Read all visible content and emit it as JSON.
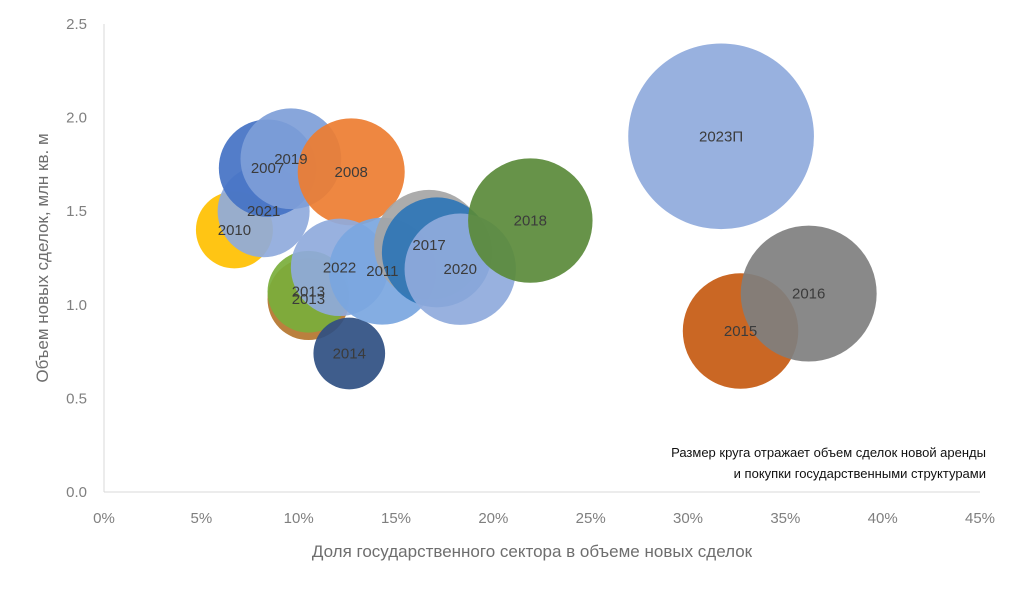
{
  "chart_data": {
    "type": "scatter",
    "subtype": "bubble",
    "title": "",
    "xlabel": "Доля государственного сектора в объеме новых сделок",
    "ylabel": "Объем новых сделок, млн кв. м",
    "xlim": [
      0,
      45
    ],
    "ylim": [
      0,
      2.5
    ],
    "x_ticks": [
      "0%",
      "5%",
      "10%",
      "15%",
      "20%",
      "25%",
      "30%",
      "35%",
      "40%",
      "45%"
    ],
    "y_ticks": [
      "0.0",
      "0.5",
      "1.0",
      "1.5",
      "2.0",
      "2.5"
    ],
    "grid": false,
    "size_note": [
      "Размер круга отражает объем сделок новой аренды",
      "и покупки государственными структурами"
    ],
    "points": [
      {
        "label": "2010",
        "x": 6.7,
        "y": 1.4,
        "size": 0.09,
        "color": "#ffc000"
      },
      {
        "label": "2013",
        "x": 10.5,
        "y": 1.03,
        "size": 0.11,
        "color": "#b4752e"
      },
      {
        "label": "2013",
        "x": 10.5,
        "y": 1.07,
        "size": 0.11,
        "color": "#7aae3b"
      },
      {
        "label": "2021",
        "x": 8.2,
        "y": 1.5,
        "size": 0.16,
        "color": "#8faadc"
      },
      {
        "label": "2007",
        "x": 8.4,
        "y": 1.73,
        "size": 0.19,
        "color": "#4472c4"
      },
      {
        "label": "2019",
        "x": 9.6,
        "y": 1.78,
        "size": 0.21,
        "color": "#7e9ed8"
      },
      {
        "label": "2008",
        "x": 12.7,
        "y": 1.71,
        "size": 0.25,
        "color": "#ed7d31"
      },
      {
        "label": "2014",
        "x": 12.6,
        "y": 0.74,
        "size": 0.07,
        "color": "#2f4f82"
      },
      {
        "label": "2022",
        "x": 12.1,
        "y": 1.2,
        "size": 0.19,
        "color": "#8faadc"
      },
      {
        "label": "2011",
        "x": 14.3,
        "y": 1.18,
        "size": 0.25,
        "color": "#7aa6e0"
      },
      {
        "label": "2017",
        "x": 16.7,
        "y": 1.32,
        "size": 0.27,
        "color": "#a5a5a5"
      },
      {
        "label": "",
        "x": 17.1,
        "y": 1.28,
        "size": 0.27,
        "color": "#2e75b6"
      },
      {
        "label": "2020",
        "x": 18.3,
        "y": 1.19,
        "size": 0.28,
        "color": "#8faadc"
      },
      {
        "label": "2018",
        "x": 21.9,
        "y": 1.45,
        "size": 0.38,
        "color": "#5a8a3a"
      },
      {
        "label": "2023П",
        "x": 31.7,
        "y": 1.9,
        "size": 1.05,
        "color": "#8faadc"
      },
      {
        "label": "2015",
        "x": 32.7,
        "y": 0.86,
        "size": 0.31,
        "color": "#c55a11"
      },
      {
        "label": "2016",
        "x": 36.2,
        "y": 1.06,
        "size": 0.48,
        "color": "#7f7f7f"
      }
    ]
  }
}
